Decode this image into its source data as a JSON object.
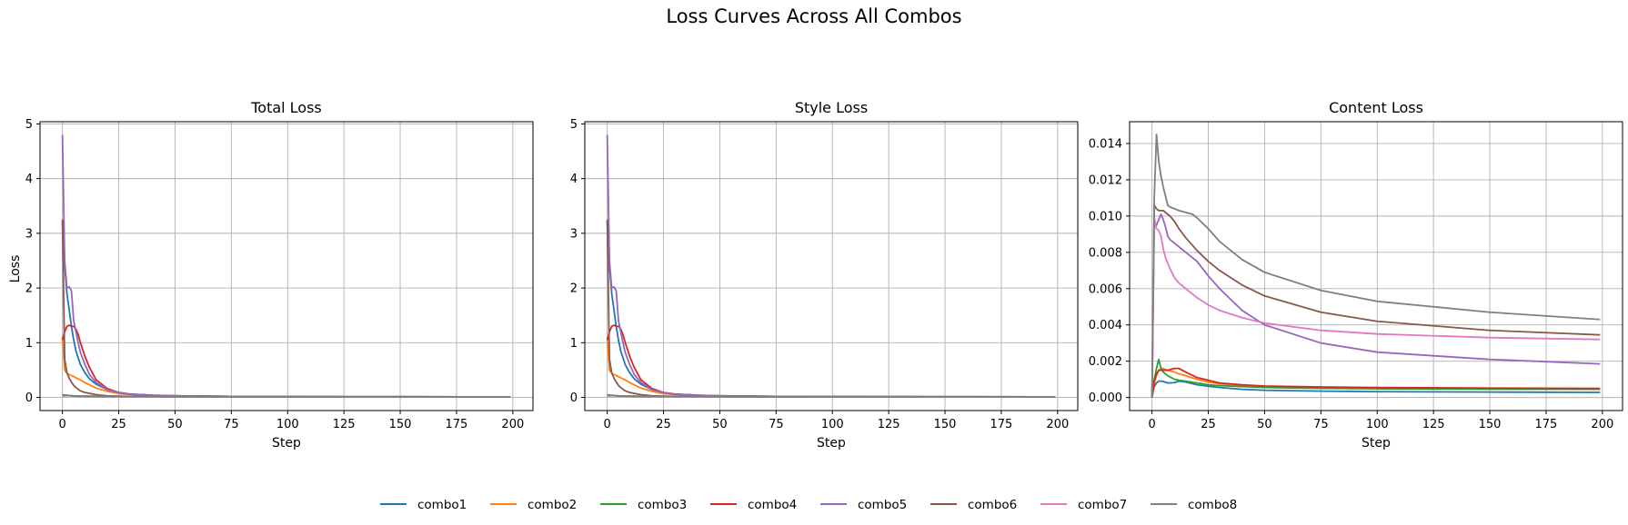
{
  "suptitle": "Loss Curves Across All Combos",
  "colors": {
    "combo1": "#1f77b4",
    "combo2": "#ff7f0e",
    "combo3": "#2ca02c",
    "combo4": "#d62728",
    "combo5": "#9467bd",
    "combo6": "#8c564b",
    "combo7": "#e377c2",
    "combo8": "#7f7f7f",
    "grid": "#b0b0b0"
  },
  "legend": {
    "placement": "bottom-center",
    "entries": [
      "combo1",
      "combo2",
      "combo3",
      "combo4",
      "combo5",
      "combo6",
      "combo7",
      "combo8"
    ]
  },
  "chart_data": [
    {
      "type": "line",
      "title": "Total Loss",
      "xlabel": "Step",
      "ylabel": "Loss",
      "xlim": [
        -9.95,
        208.95
      ],
      "ylim": [
        -0.24,
        5.04
      ],
      "xticks": [
        0,
        25,
        50,
        75,
        100,
        125,
        150,
        175,
        200
      ],
      "yticks": [
        0,
        1,
        2,
        3,
        4,
        5
      ],
      "xtick_labels": [
        "0",
        "25",
        "50",
        "75",
        "100",
        "125",
        "150",
        "175",
        "200"
      ],
      "ytick_labels": [
        "0",
        "1",
        "2",
        "3",
        "4",
        "5"
      ],
      "grid": true,
      "series": [
        {
          "name": "combo1",
          "x": [
            0,
            1,
            2,
            3,
            4,
            5,
            6,
            8,
            10,
            12,
            15,
            20,
            25,
            30,
            40,
            50,
            75,
            100,
            150,
            199
          ],
          "y": [
            3.2,
            2.4,
            1.9,
            1.6,
            1.3,
            1.05,
            0.85,
            0.6,
            0.45,
            0.34,
            0.24,
            0.14,
            0.09,
            0.06,
            0.04,
            0.03,
            0.02,
            0.015,
            0.012,
            0.01
          ]
        },
        {
          "name": "combo2",
          "x": [
            0,
            1,
            2,
            3,
            5,
            8,
            10,
            15,
            20,
            25,
            30,
            40,
            50,
            75,
            100,
            150,
            199
          ],
          "y": [
            1.1,
            0.5,
            0.44,
            0.42,
            0.38,
            0.32,
            0.27,
            0.17,
            0.11,
            0.07,
            0.05,
            0.03,
            0.025,
            0.02,
            0.015,
            0.012,
            0.01
          ]
        },
        {
          "name": "combo3",
          "x": [
            0,
            1,
            2,
            3,
            5,
            10,
            20,
            50,
            100,
            199
          ],
          "y": [
            0.03,
            0.03,
            0.035,
            0.03,
            0.025,
            0.02,
            0.015,
            0.012,
            0.01,
            0.01
          ]
        },
        {
          "name": "combo4",
          "x": [
            0,
            1,
            2,
            3,
            4,
            5,
            6,
            7,
            8,
            10,
            12,
            15,
            20,
            25,
            30,
            40,
            50,
            75,
            100,
            150,
            199
          ],
          "y": [
            1.05,
            1.2,
            1.3,
            1.32,
            1.3,
            1.3,
            1.25,
            1.15,
            1.0,
            0.75,
            0.55,
            0.32,
            0.16,
            0.09,
            0.06,
            0.04,
            0.03,
            0.02,
            0.015,
            0.012,
            0.01
          ]
        },
        {
          "name": "combo5",
          "x": [
            0,
            1,
            2,
            3,
            4,
            5,
            6,
            7,
            8,
            10,
            12,
            15,
            20,
            25,
            30,
            40,
            50,
            75,
            100,
            150,
            199
          ],
          "y": [
            4.8,
            2.5,
            2.0,
            2.02,
            1.95,
            1.4,
            1.2,
            1.0,
            0.82,
            0.6,
            0.42,
            0.27,
            0.14,
            0.09,
            0.06,
            0.04,
            0.03,
            0.02,
            0.015,
            0.012,
            0.01
          ]
        },
        {
          "name": "combo6",
          "x": [
            0,
            1,
            2,
            3,
            4,
            5,
            6,
            8,
            10,
            15,
            20,
            25,
            30,
            40,
            50,
            75,
            100,
            150,
            199
          ],
          "y": [
            3.25,
            0.7,
            0.45,
            0.35,
            0.28,
            0.22,
            0.18,
            0.12,
            0.09,
            0.05,
            0.03,
            0.025,
            0.02,
            0.018,
            0.015,
            0.012,
            0.01,
            0.01,
            0.01
          ]
        },
        {
          "name": "combo7",
          "x": [
            0,
            1,
            2,
            3,
            5,
            10,
            20,
            50,
            100,
            199
          ],
          "y": [
            0.04,
            0.04,
            0.04,
            0.035,
            0.03,
            0.025,
            0.02,
            0.015,
            0.012,
            0.01
          ]
        },
        {
          "name": "combo8",
          "x": [
            0,
            1,
            2,
            3,
            5,
            10,
            20,
            50,
            100,
            199
          ],
          "y": [
            0.05,
            0.045,
            0.04,
            0.035,
            0.03,
            0.025,
            0.02,
            0.015,
            0.012,
            0.01
          ]
        }
      ]
    },
    {
      "type": "line",
      "title": "Style Loss",
      "xlabel": "Step",
      "ylabel": "",
      "xlim": [
        -9.95,
        208.95
      ],
      "ylim": [
        -0.24,
        5.04
      ],
      "xticks": [
        0,
        25,
        50,
        75,
        100,
        125,
        150,
        175,
        200
      ],
      "yticks": [
        0,
        1,
        2,
        3,
        4,
        5
      ],
      "xtick_labels": [
        "0",
        "25",
        "50",
        "75",
        "100",
        "125",
        "150",
        "175",
        "200"
      ],
      "ytick_labels": [
        "0",
        "1",
        "2",
        "3",
        "4",
        "5"
      ],
      "grid": true,
      "series": [
        {
          "name": "combo1",
          "x": [
            0,
            1,
            2,
            3,
            4,
            5,
            6,
            8,
            10,
            12,
            15,
            20,
            25,
            30,
            40,
            50,
            75,
            100,
            150,
            199
          ],
          "y": [
            3.2,
            2.4,
            1.9,
            1.6,
            1.3,
            1.05,
            0.85,
            0.6,
            0.45,
            0.34,
            0.24,
            0.14,
            0.09,
            0.06,
            0.04,
            0.03,
            0.02,
            0.015,
            0.012,
            0.01
          ]
        },
        {
          "name": "combo2",
          "x": [
            0,
            1,
            2,
            3,
            5,
            8,
            10,
            15,
            20,
            25,
            30,
            40,
            50,
            75,
            100,
            150,
            199
          ],
          "y": [
            1.1,
            0.5,
            0.44,
            0.42,
            0.38,
            0.32,
            0.27,
            0.17,
            0.11,
            0.07,
            0.05,
            0.03,
            0.025,
            0.02,
            0.015,
            0.012,
            0.01
          ]
        },
        {
          "name": "combo3",
          "x": [
            0,
            1,
            2,
            3,
            5,
            10,
            20,
            50,
            100,
            199
          ],
          "y": [
            0.03,
            0.03,
            0.035,
            0.03,
            0.025,
            0.02,
            0.015,
            0.012,
            0.01,
            0.01
          ]
        },
        {
          "name": "combo4",
          "x": [
            0,
            1,
            2,
            3,
            4,
            5,
            6,
            7,
            8,
            10,
            12,
            15,
            20,
            25,
            30,
            40,
            50,
            75,
            100,
            150,
            199
          ],
          "y": [
            1.05,
            1.2,
            1.3,
            1.32,
            1.3,
            1.3,
            1.25,
            1.15,
            1.0,
            0.75,
            0.55,
            0.32,
            0.16,
            0.09,
            0.06,
            0.04,
            0.03,
            0.02,
            0.015,
            0.012,
            0.01
          ]
        },
        {
          "name": "combo5",
          "x": [
            0,
            1,
            2,
            3,
            4,
            5,
            6,
            7,
            8,
            10,
            12,
            15,
            20,
            25,
            30,
            40,
            50,
            75,
            100,
            150,
            199
          ],
          "y": [
            4.8,
            2.5,
            2.0,
            2.02,
            1.95,
            1.4,
            1.2,
            1.0,
            0.82,
            0.6,
            0.42,
            0.27,
            0.14,
            0.09,
            0.06,
            0.04,
            0.03,
            0.02,
            0.015,
            0.012,
            0.01
          ]
        },
        {
          "name": "combo6",
          "x": [
            0,
            1,
            2,
            3,
            4,
            5,
            6,
            8,
            10,
            15,
            20,
            25,
            30,
            40,
            50,
            75,
            100,
            150,
            199
          ],
          "y": [
            3.25,
            0.7,
            0.45,
            0.35,
            0.28,
            0.22,
            0.18,
            0.12,
            0.09,
            0.05,
            0.03,
            0.025,
            0.02,
            0.018,
            0.015,
            0.012,
            0.01,
            0.01,
            0.01
          ]
        },
        {
          "name": "combo7",
          "x": [
            0,
            1,
            2,
            3,
            5,
            10,
            20,
            50,
            100,
            199
          ],
          "y": [
            0.04,
            0.04,
            0.04,
            0.035,
            0.03,
            0.025,
            0.02,
            0.015,
            0.012,
            0.01
          ]
        },
        {
          "name": "combo8",
          "x": [
            0,
            1,
            2,
            3,
            5,
            10,
            20,
            50,
            100,
            199
          ],
          "y": [
            0.05,
            0.045,
            0.04,
            0.035,
            0.03,
            0.025,
            0.02,
            0.015,
            0.012,
            0.01
          ]
        }
      ]
    },
    {
      "type": "line",
      "title": "Content Loss",
      "xlabel": "Step",
      "ylabel": "",
      "xlim": [
        -9.95,
        208.95
      ],
      "ylim": [
        -0.00072,
        0.0152
      ],
      "xticks": [
        0,
        25,
        50,
        75,
        100,
        125,
        150,
        175,
        200
      ],
      "yticks": [
        0,
        0.002,
        0.004,
        0.006,
        0.008,
        0.01,
        0.012,
        0.014
      ],
      "xtick_labels": [
        "0",
        "25",
        "50",
        "75",
        "100",
        "125",
        "150",
        "175",
        "200"
      ],
      "ytick_labels": [
        "0.000",
        "0.002",
        "0.004",
        "0.006",
        "0.008",
        "0.010",
        "0.012",
        "0.014"
      ],
      "grid": true,
      "series": [
        {
          "name": "combo1",
          "x": [
            0,
            1,
            2,
            3,
            4,
            5,
            7,
            10,
            12,
            15,
            20,
            25,
            30,
            40,
            50,
            75,
            100,
            150,
            199
          ],
          "y": [
            0,
            0.0006,
            0.0008,
            0.0009,
            0.0009,
            0.00088,
            0.0008,
            0.00082,
            0.0009,
            0.00085,
            0.0007,
            0.00062,
            0.00055,
            0.00045,
            0.0004,
            0.00035,
            0.00032,
            0.0003,
            0.00028
          ]
        },
        {
          "name": "combo2",
          "x": [
            0,
            1,
            2,
            3,
            4,
            5,
            7,
            10,
            12,
            15,
            20,
            25,
            30,
            40,
            50,
            75,
            100,
            150,
            199
          ],
          "y": [
            0,
            0.0008,
            0.0012,
            0.0015,
            0.0016,
            0.0016,
            0.0015,
            0.0014,
            0.0013,
            0.0012,
            0.001,
            0.00085,
            0.00075,
            0.00065,
            0.0006,
            0.00055,
            0.0005,
            0.00048,
            0.00046
          ]
        },
        {
          "name": "combo3",
          "x": [
            0,
            1,
            2,
            3,
            4,
            5,
            7,
            10,
            12,
            15,
            20,
            25,
            30,
            40,
            50,
            75,
            100,
            150,
            199
          ],
          "y": [
            0,
            0.001,
            0.0016,
            0.0021,
            0.0016,
            0.0014,
            0.0012,
            0.001,
            0.00095,
            0.0009,
            0.0008,
            0.0007,
            0.00065,
            0.0006,
            0.00055,
            0.0005,
            0.00048,
            0.00046,
            0.00045
          ]
        },
        {
          "name": "combo4",
          "x": [
            0,
            1,
            2,
            3,
            4,
            5,
            7,
            10,
            12,
            15,
            20,
            25,
            30,
            40,
            50,
            75,
            100,
            150,
            199
          ],
          "y": [
            0,
            0.0009,
            0.0013,
            0.0015,
            0.0015,
            0.0015,
            0.0015,
            0.0016,
            0.0016,
            0.0014,
            0.0011,
            0.00095,
            0.0008,
            0.0007,
            0.00063,
            0.00058,
            0.00055,
            0.00052,
            0.0005
          ]
        },
        {
          "name": "combo5",
          "x": [
            0,
            1,
            2,
            3,
            4,
            5,
            6,
            7,
            8,
            10,
            12,
            15,
            18,
            20,
            25,
            30,
            40,
            50,
            75,
            100,
            150,
            199
          ],
          "y": [
            0,
            0.0095,
            0.0095,
            0.0098,
            0.0101,
            0.0098,
            0.0094,
            0.0089,
            0.0087,
            0.0085,
            0.0083,
            0.008,
            0.0077,
            0.0075,
            0.0067,
            0.006,
            0.0048,
            0.004,
            0.003,
            0.0025,
            0.0021,
            0.00185
          ]
        },
        {
          "name": "combo6",
          "x": [
            0,
            1,
            2,
            3,
            4,
            5,
            6,
            8,
            10,
            12,
            15,
            20,
            25,
            30,
            40,
            50,
            75,
            100,
            150,
            199
          ],
          "y": [
            0,
            0.0106,
            0.0104,
            0.0103,
            0.0103,
            0.0103,
            0.0102,
            0.01,
            0.0097,
            0.0093,
            0.0088,
            0.0081,
            0.0075,
            0.007,
            0.0062,
            0.0056,
            0.0047,
            0.0042,
            0.0037,
            0.00345
          ]
        },
        {
          "name": "combo7",
          "x": [
            0,
            1,
            2,
            3,
            4,
            5,
            6,
            8,
            10,
            12,
            15,
            20,
            25,
            30,
            40,
            50,
            75,
            100,
            150,
            199
          ],
          "y": [
            0,
            0.0099,
            0.0093,
            0.0092,
            0.0089,
            0.0082,
            0.0077,
            0.0071,
            0.0066,
            0.0063,
            0.006,
            0.0055,
            0.0051,
            0.0048,
            0.0044,
            0.0041,
            0.0037,
            0.0035,
            0.0033,
            0.0032
          ]
        },
        {
          "name": "combo8",
          "x": [
            0,
            1,
            2,
            3,
            4,
            5,
            6,
            7,
            8,
            10,
            12,
            15,
            18,
            20,
            25,
            30,
            40,
            50,
            75,
            100,
            150,
            199
          ],
          "y": [
            0,
            0.011,
            0.0145,
            0.013,
            0.0122,
            0.0116,
            0.0111,
            0.0106,
            0.0105,
            0.0104,
            0.0103,
            0.0102,
            0.0101,
            0.0099,
            0.0093,
            0.0086,
            0.0076,
            0.0069,
            0.0059,
            0.0053,
            0.0047,
            0.0043
          ]
        }
      ]
    }
  ]
}
